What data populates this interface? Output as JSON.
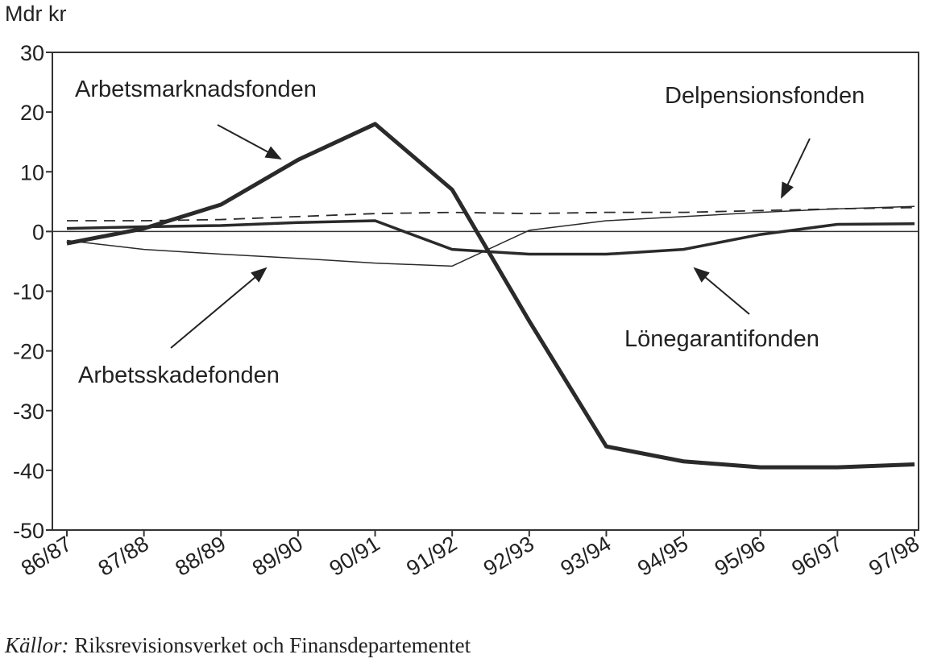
{
  "chart_data": {
    "type": "line",
    "y_label": "Mdr kr",
    "categories": [
      "86/87",
      "87/88",
      "88/89",
      "89/90",
      "90/91",
      "91/92",
      "92/93",
      "93/94",
      "94/95",
      "95/96",
      "96/97",
      "97/98"
    ],
    "series": [
      {
        "name": "Arbetsmarknadsfonden",
        "color": "#2a2a2a",
        "width": 5,
        "dashed": false,
        "values": [
          -2,
          0.5,
          4.5,
          12,
          18,
          7,
          -15,
          -36,
          -38.5,
          -39.5,
          -39.5,
          -39
        ]
      },
      {
        "name": "Lönegarantifonden",
        "color": "#2a2a2a",
        "width": 3.5,
        "dashed": false,
        "values": [
          0.5,
          0.8,
          1,
          1.5,
          1.8,
          -3,
          -3.8,
          -3.8,
          -3,
          -0.5,
          1.2,
          1.3
        ]
      },
      {
        "name": "Arbetsskadefonden",
        "color": "#2a2a2a",
        "width": 1.5,
        "dashed": false,
        "values": [
          -1.5,
          -3,
          -3.8,
          -4.5,
          -5.3,
          -5.8,
          0.2,
          1.8,
          2.5,
          3.2,
          3.8,
          4.2
        ]
      },
      {
        "name": "Delpensionsfonden",
        "color": "#2a2a2a",
        "width": 1.8,
        "dashed": true,
        "values": [
          1.8,
          1.8,
          2,
          2.5,
          3,
          3.2,
          3,
          3.2,
          3.2,
          3.5,
          3.8,
          4
        ]
      }
    ],
    "ylim": [
      -50,
      30
    ],
    "yticks": [
      -50,
      -40,
      -30,
      -20,
      -10,
      0,
      10,
      20,
      30
    ],
    "zero_line": true,
    "source_label": "Källor:",
    "source": "Riksrevisionsverket och Finansdepartementet"
  }
}
